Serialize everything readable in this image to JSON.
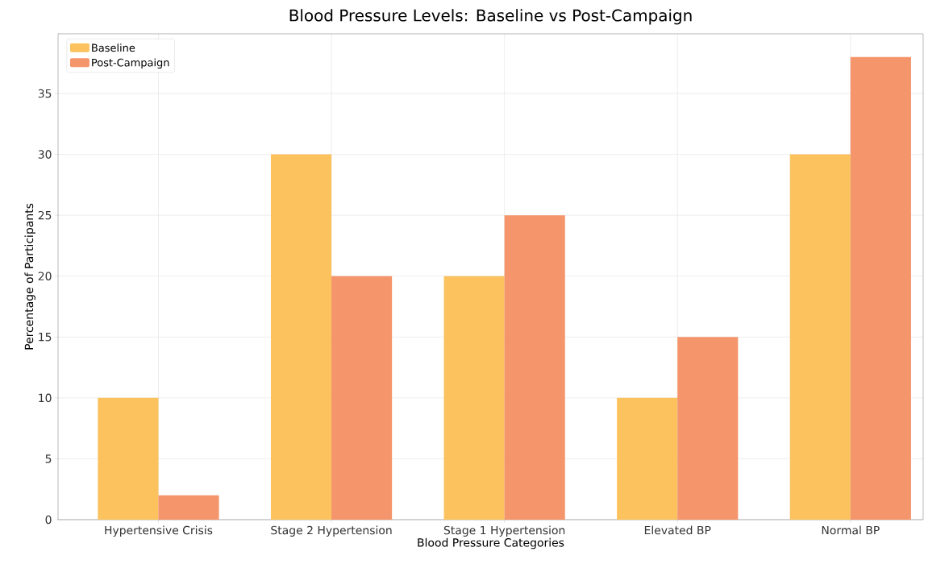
{
  "chart_data": {
    "type": "bar",
    "title": "Blood Pressure Levels: Baseline vs Post-Campaign",
    "xlabel": "Blood Pressure Categories",
    "ylabel": "Percentage of Participants",
    "categories": [
      "Hypertensive Crisis",
      "Stage 2 Hypertension",
      "Stage 1 Hypertension",
      "Elevated BP",
      "Normal BP"
    ],
    "series": [
      {
        "name": "Baseline",
        "color": "#fbc25e",
        "values": [
          10,
          30,
          20,
          10,
          30
        ]
      },
      {
        "name": "Post-Campaign",
        "color": "#f4956b",
        "values": [
          2,
          20,
          25,
          15,
          38
        ]
      }
    ],
    "ylim": [
      0,
      39.9
    ],
    "yticks": [
      0,
      5,
      10,
      15,
      20,
      25,
      30,
      35
    ],
    "grid": true,
    "legend": "top left"
  }
}
